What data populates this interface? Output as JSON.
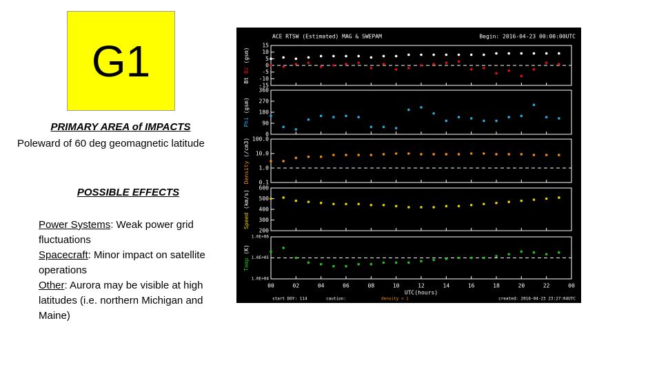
{
  "slide": {
    "badge": "G1",
    "impact_heading": "PRIMARY AREA of IMPACTS",
    "impact_text": "Poleward of 60 deg geomagnetic latitude",
    "effects_heading": "POSSIBLE EFFECTS",
    "effects": [
      {
        "label": "Power Systems",
        "text": ": Weak power grid fluctuations"
      },
      {
        "label": "Spacecraft",
        "text": ": Minor impact on satellite operations"
      },
      {
        "label": "Other",
        "text": ": Aurora may be visible at high latitudes (i.e. northern Michigan and Maine)"
      }
    ]
  },
  "chart_data": {
    "type": "scatter",
    "title": "ACE RTSW (Estimated) MAG & SWEPAM",
    "begin": "Begin: 2016-04-23 00:00:00UTC",
    "xlabel": "UTC(hours)",
    "footer_start": "start DOY: 114",
    "footer_caution": "caution:",
    "footer_density": "density < 1",
    "footer_created": "created: 2016-04-23 23:27:04UTC",
    "x": [
      0,
      1,
      2,
      3,
      4,
      5,
      6,
      7,
      8,
      9,
      10,
      11,
      12,
      13,
      14,
      15,
      16,
      17,
      18,
      19,
      20,
      21,
      22,
      23
    ],
    "xlim": [
      0,
      24
    ],
    "xticks": [
      {
        "value": 0,
        "label": "00"
      },
      {
        "value": 2,
        "label": "02"
      },
      {
        "value": 4,
        "label": "04"
      },
      {
        "value": 6,
        "label": "06"
      },
      {
        "value": 8,
        "label": "08"
      },
      10,
      12,
      14,
      16,
      18,
      20,
      22,
      {
        "value": 24,
        "label": "00"
      }
    ],
    "panels": [
      {
        "ylabel": "(gsm)",
        "ylim": [
          -15,
          15
        ],
        "yticks": [
          -15,
          -10,
          -5,
          0,
          5,
          10,
          15
        ],
        "reference": 0,
        "series": [
          {
            "name": "Bt",
            "color": "#ffffff",
            "values": [
              5,
              6,
              5,
              6,
              7,
              7,
              7,
              7,
              6,
              7,
              7,
              8,
              8,
              8,
              8,
              8,
              8,
              8,
              9,
              9,
              9,
              9,
              9,
              9
            ]
          },
          {
            "name": "Bz",
            "color": "#e01010",
            "values": [
              0,
              -1,
              1,
              2,
              -1,
              0,
              1,
              2,
              -2,
              1,
              -3,
              -2,
              0,
              1,
              2,
              3,
              -3,
              -2,
              -6,
              -4,
              -8,
              -3,
              2,
              1
            ]
          }
        ]
      },
      {
        "ylabel": "(gsm)",
        "ylim": [
          0,
          360
        ],
        "yticks": [
          0,
          90,
          180,
          270,
          360
        ],
        "series": [
          {
            "name": "Phi",
            "color": "#2aa8d8",
            "values": [
              150,
              60,
              40,
              120,
              150,
              140,
              150,
              140,
              60,
              60,
              50,
              200,
              220,
              170,
              110,
              140,
              130,
              110,
              110,
              140,
              150,
              240,
              140,
              130
            ]
          }
        ]
      },
      {
        "ylabel": "(/cm3)",
        "log": true,
        "ylim": [
          0.1,
          100
        ],
        "yticks": [
          0.1,
          {
            "value": 1,
            "label": "1.0"
          },
          {
            "value": 10,
            "label": "10.0"
          },
          {
            "value": 100,
            "label": "100.0"
          }
        ],
        "reference": 1,
        "series": [
          {
            "name": "Density",
            "color": "#f08a10",
            "values": [
              3,
              3,
              5,
              6,
              6,
              8,
              8,
              8,
              8,
              9,
              10,
              10,
              9,
              9,
              9,
              9,
              10,
              10,
              9,
              9,
              9,
              8,
              8,
              8
            ]
          }
        ]
      },
      {
        "ylabel": "(km/s)",
        "ylim": [
          200,
          600
        ],
        "yticks": [
          200,
          300,
          400,
          500,
          600
        ],
        "series": [
          {
            "name": "Speed",
            "color": "#e8d000",
            "values": [
              500,
              510,
              480,
              470,
              460,
              450,
              450,
              450,
              440,
              440,
              430,
              420,
              420,
              420,
              430,
              430,
              440,
              450,
              460,
              470,
              480,
              490,
              500,
              510
            ]
          }
        ]
      },
      {
        "ylabel": "(K)",
        "log": true,
        "ylim": [
          10000,
          1000000
        ],
        "yticks": [
          {
            "value": 10000,
            "label": "1.0E+04"
          },
          {
            "value": 100000,
            "label": "1.0E+05"
          },
          {
            "value": 1000000,
            "label": "1.0E+06"
          }
        ],
        "reference": 100000,
        "series": [
          {
            "name": "Temp",
            "color": "#20c020",
            "values": [
              200000,
              300000,
              100000,
              60000,
              50000,
              40000,
              40000,
              50000,
              50000,
              60000,
              60000,
              60000,
              70000,
              80000,
              90000,
              100000,
              100000,
              100000,
              120000,
              150000,
              200000,
              180000,
              150000,
              180000
            ]
          }
        ]
      }
    ]
  }
}
